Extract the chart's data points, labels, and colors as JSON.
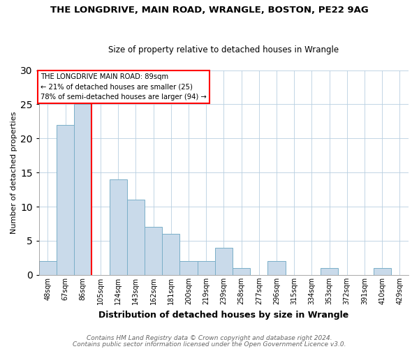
{
  "title1": "THE LONGDRIVE, MAIN ROAD, WRANGLE, BOSTON, PE22 9AG",
  "title2": "Size of property relative to detached houses in Wrangle",
  "xlabel": "Distribution of detached houses by size in Wrangle",
  "ylabel": "Number of detached properties",
  "categories": [
    "48sqm",
    "67sqm",
    "86sqm",
    "105sqm",
    "124sqm",
    "143sqm",
    "162sqm",
    "181sqm",
    "200sqm",
    "219sqm",
    "239sqm",
    "258sqm",
    "277sqm",
    "296sqm",
    "315sqm",
    "334sqm",
    "353sqm",
    "372sqm",
    "391sqm",
    "410sqm",
    "429sqm"
  ],
  "values": [
    2,
    22,
    25,
    0,
    14,
    11,
    7,
    6,
    2,
    2,
    4,
    1,
    0,
    2,
    0,
    0,
    1,
    0,
    0,
    1,
    0
  ],
  "bar_color": "#c9daea",
  "bar_edge_color": "#7aafc8",
  "red_line_x": 2.5,
  "annotation_text": "THE LONGDRIVE MAIN ROAD: 89sqm\n← 21% of detached houses are smaller (25)\n78% of semi-detached houses are larger (94) →",
  "annotation_box_color": "white",
  "annotation_box_edge_color": "red",
  "ylim": [
    0,
    30
  ],
  "yticks": [
    0,
    5,
    10,
    15,
    20,
    25,
    30
  ],
  "footer1": "Contains HM Land Registry data © Crown copyright and database right 2024.",
  "footer2": "Contains public sector information licensed under the Open Government Licence v3.0."
}
